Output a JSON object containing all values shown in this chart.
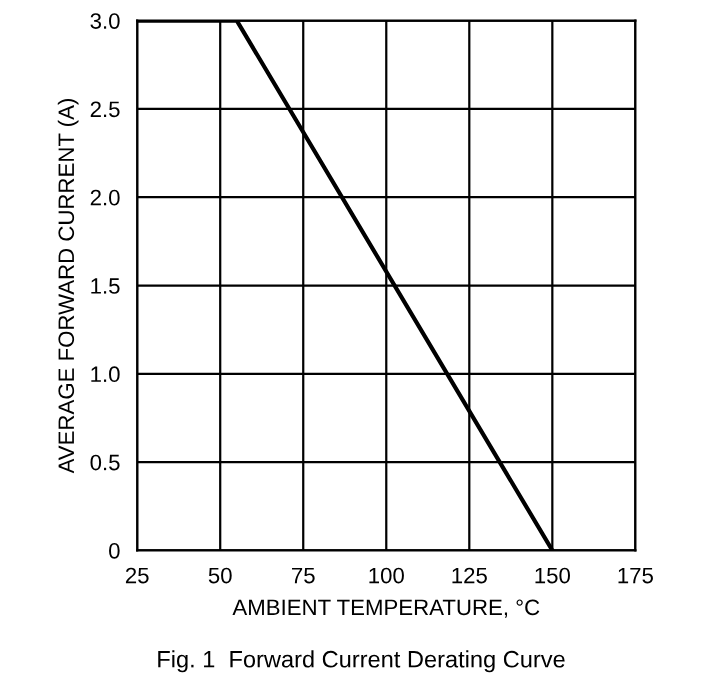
{
  "chart_data": {
    "type": "line",
    "xlabel": "AMBIENT TEMPERATURE, °C",
    "ylabel": "AVERAGE FORWARD CURRENT (A)",
    "annotations": [
      "Fig. 1  Forward Current Derating Curve"
    ],
    "x": [
      25,
      55,
      150
    ],
    "series": [
      {
        "color": "#000000",
        "values": [
          3.0,
          3.0,
          0
        ]
      }
    ],
    "xlim": [
      25,
      175
    ],
    "xticks": [
      25,
      50,
      75,
      100,
      125,
      150,
      175
    ],
    "ylim": [
      0,
      3
    ],
    "yticks": [
      0,
      {
        "value": 0.5,
        "label": "0.5"
      },
      {
        "value": 1,
        "label": "1.0"
      },
      {
        "value": 1.5,
        "label": "1.5"
      },
      {
        "value": 2,
        "label": "2.0"
      },
      {
        "value": 2.5,
        "label": "2.5"
      },
      {
        "value": 3,
        "label": "3.0"
      }
    ],
    "grid": true,
    "marker": "none",
    "line_style": "solid"
  }
}
